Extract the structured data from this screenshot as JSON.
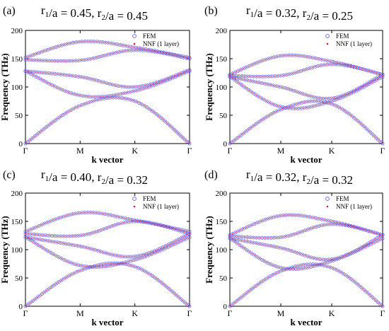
{
  "colors": {
    "fem": "#5a5aff",
    "nnf": "#d81b2a",
    "axis": "#000000"
  },
  "chart_data": [
    {
      "type": "line",
      "panel_label": "(a)",
      "title": {
        "r1": "r",
        "r1_sub": "1",
        "r1_rest": "/a = 0.45, ",
        "r2": "r",
        "r2_sub": "2",
        "r2_rest": "/a = 0.45"
      },
      "xlabel": "k vector",
      "ylabel": "Frequency (THz)",
      "xticklabels": [
        "Γ",
        "M",
        "K",
        "Γ"
      ],
      "yticks": [
        0,
        50,
        100,
        150,
        200
      ],
      "ylim": [
        0,
        200
      ],
      "legend": {
        "position": "top-right",
        "entries": [
          "FEM",
          "NNF (1 layer)"
        ]
      },
      "bands": [
        {
          "values": [
            0,
            67,
            75,
            0
          ]
        },
        {
          "values": [
            128,
            85,
            93,
            128
          ]
        },
        {
          "values": [
            128,
            118,
            100,
            130
          ]
        },
        {
          "values": [
            148,
            147,
            165,
            150
          ]
        },
        {
          "values": [
            152,
            180,
            170,
            152
          ]
        }
      ]
    },
    {
      "type": "line",
      "panel_label": "(b)",
      "title": {
        "r1": "r",
        "r1_sub": "1",
        "r1_rest": "/a = 0.32, ",
        "r2": "r",
        "r2_sub": "2",
        "r2_rest": "/a = 0.25"
      },
      "xlabel": "k vector",
      "ylabel": "Frequency (THz)",
      "xticklabels": [
        "Γ",
        "M",
        "K",
        "Γ"
      ],
      "yticks": [
        0,
        50,
        100,
        150,
        200
      ],
      "ylim": [
        0,
        200
      ],
      "legend": {
        "position": "top-right",
        "entries": [
          "FEM",
          "NNF (1 layer)"
        ]
      },
      "bands": [
        {
          "values": [
            0,
            60,
            70,
            0
          ]
        },
        {
          "values": [
            118,
            65,
            75,
            118
          ]
        },
        {
          "values": [
            118,
            100,
            80,
            122
          ]
        },
        {
          "values": [
            120,
            120,
            140,
            122
          ]
        },
        {
          "values": [
            122,
            155,
            145,
            122
          ]
        }
      ]
    },
    {
      "type": "line",
      "panel_label": "(c)",
      "title": {
        "r1": "r",
        "r1_sub": "1",
        "r1_rest": "/a = 0.40, ",
        "r2": "r",
        "r2_sub": "2",
        "r2_rest": "/a = 0.32"
      },
      "xlabel": "k vector",
      "ylabel": "Frequency (THz)",
      "xticklabels": [
        "Γ",
        "M",
        "K",
        "Γ"
      ],
      "yticks": [
        0,
        50,
        100,
        150,
        200
      ],
      "ylim": [
        0,
        200
      ],
      "legend": {
        "position": "top-right",
        "entries": [
          "FEM",
          "NNF (1 layer)"
        ]
      },
      "bands": [
        {
          "values": [
            0,
            63,
            70,
            0
          ]
        },
        {
          "values": [
            122,
            72,
            82,
            122
          ]
        },
        {
          "values": [
            122,
            106,
            88,
            128
          ]
        },
        {
          "values": [
            128,
            125,
            150,
            128
          ]
        },
        {
          "values": [
            132,
            165,
            152,
            132
          ]
        }
      ]
    },
    {
      "type": "line",
      "panel_label": "(d)",
      "title": {
        "r1": "r",
        "r1_sub": "1",
        "r1_rest": "/a = 0.32, ",
        "r2": "r",
        "r2_sub": "2",
        "r2_rest": "/a = 0.32"
      },
      "xlabel": "k vector",
      "ylabel": "Frequency (THz)",
      "xticklabels": [
        "Γ",
        "M",
        "K",
        "Γ"
      ],
      "yticks": [
        0,
        50,
        100,
        150,
        200
      ],
      "ylim": [
        0,
        200
      ],
      "legend": {
        "position": "top-right",
        "entries": [
          "FEM",
          "NNF (1 layer)"
        ]
      },
      "bands": [
        {
          "values": [
            0,
            62,
            68,
            0
          ]
        },
        {
          "values": [
            120,
            68,
            80,
            120
          ]
        },
        {
          "values": [
            120,
            103,
            83,
            126
          ]
        },
        {
          "values": [
            124,
            122,
            145,
            126
          ]
        },
        {
          "values": [
            126,
            160,
            150,
            126
          ]
        }
      ]
    }
  ]
}
